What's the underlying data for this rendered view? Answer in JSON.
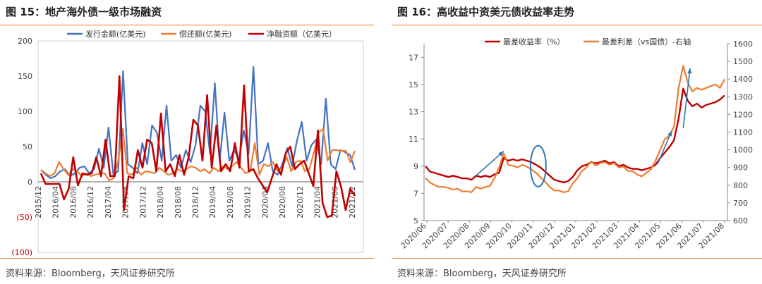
{
  "colors": {
    "accent_orange": "#e07a2e",
    "blue": "#4472c4",
    "orange": "#ed7d31",
    "dark_red": "#c00000",
    "negative_label": "#c00000",
    "annotation_blue": "#2e75b6"
  },
  "left": {
    "title": "图 15：地产海外债一级市场融资",
    "source": "资料来源：Bloomberg，天风证券研究所"
  },
  "right": {
    "title": "图 16：高收益中资美元债收益率走势",
    "source": "资料来源：Bloomberg，天风证券研究所"
  },
  "chart_data": [
    {
      "type": "line",
      "title": "图 15：地产海外债一级市场融资",
      "ylim": [
        -100,
        200
      ],
      "yticks": [
        -100,
        -50,
        0,
        50,
        100,
        150,
        200
      ],
      "ytick_labels": [
        "(100)",
        "(50)",
        "0",
        "50",
        "100",
        "150",
        "200"
      ],
      "x_tick_labels": [
        "2015/12",
        "2016/04",
        "2016/08",
        "2016/12",
        "2017/04",
        "2017/08",
        "2017/12",
        "2018/04",
        "2018/08",
        "2018/12",
        "2019/04",
        "2019/08",
        "2019/12",
        "2020/04",
        "2020/08",
        "2020/12",
        "2021/04",
        "2021/08",
        "2021/12"
      ],
      "legend_position": "top",
      "series": [
        {
          "name": "发行金额(亿美元)",
          "color": "#4472c4",
          "values": [
            17,
            10,
            5,
            8,
            15,
            18,
            8,
            12,
            20,
            22,
            12,
            18,
            47,
            20,
            77,
            10,
            15,
            157,
            25,
            20,
            12,
            55,
            25,
            80,
            70,
            30,
            108,
            30,
            38,
            20,
            45,
            28,
            52,
            108,
            100,
            40,
            140,
            30,
            98,
            30,
            45,
            32,
            73,
            40,
            163,
            25,
            30,
            55,
            15,
            10,
            25,
            48,
            22,
            58,
            85,
            30,
            52,
            60,
            25,
            118,
            25,
            18,
            45,
            42,
            38,
            17
          ]
        },
        {
          "name": "偿还额(亿美元)",
          "color": "#ed7d31",
          "values": [
            17,
            12,
            8,
            12,
            28,
            18,
            10,
            18,
            15,
            8,
            12,
            8,
            10,
            12,
            12,
            2,
            5,
            30,
            75,
            12,
            10,
            20,
            10,
            15,
            14,
            12,
            20,
            15,
            10,
            12,
            18,
            15,
            18,
            22,
            20,
            15,
            18,
            12,
            20,
            15,
            22,
            18,
            22,
            28,
            20,
            12,
            15,
            55,
            10,
            25,
            22,
            28,
            15,
            20,
            35,
            15,
            28,
            30,
            15,
            18,
            42,
            70,
            75,
            30,
            45,
            45,
            44,
            44,
            28,
            44
          ]
        },
        {
          "name": "净融资额（亿美元）",
          "color": "#c00000",
          "values": [
            12,
            -3,
            -3,
            -3,
            -3,
            -25,
            -10,
            35,
            -5,
            12,
            10,
            12,
            35,
            8,
            60,
            8,
            8,
            150,
            -40,
            8,
            5,
            45,
            20,
            60,
            55,
            15,
            97,
            15,
            25,
            8,
            38,
            10,
            35,
            88,
            80,
            30,
            123,
            20,
            80,
            15,
            25,
            15,
            55,
            20,
            137,
            15,
            18,
            5,
            -5,
            -15,
            5,
            25,
            10,
            40,
            50,
            18,
            25,
            30,
            12,
            -6,
            73,
            -30,
            -50,
            -48,
            15,
            -7,
            -40,
            -10,
            -20
          ]
        }
      ]
    },
    {
      "type": "line",
      "title": "图 16：高收益中资美元债收益率走势",
      "y_left": {
        "ticks": [
          5,
          7,
          9,
          11,
          13,
          15,
          17
        ],
        "lim": [
          5,
          18
        ]
      },
      "y_right": {
        "ticks": [
          600,
          700,
          800,
          900,
          1000,
          1100,
          1200,
          1300,
          1400,
          1500,
          1600
        ],
        "lim": [
          600,
          1600
        ]
      },
      "x_tick_labels": [
        "2020/06",
        "2020/07",
        "2020/08",
        "2020/09",
        "2020/10",
        "2020/11",
        "2020/12",
        "2021/01",
        "2021/02",
        "2021/03",
        "2021/04",
        "2021/05",
        "2021/06",
        "2021/07",
        "2021/08"
      ],
      "legend_position": "top",
      "series": [
        {
          "name": "最差收益率（%）",
          "axis": "left",
          "color": "#c00000",
          "values": [
            9.0,
            8.6,
            8.5,
            8.4,
            8.3,
            8.2,
            8.3,
            8.2,
            8.1,
            8.1,
            8.0,
            8.3,
            8.2,
            8.3,
            8.2,
            8.4,
            8.5,
            9.6,
            9.4,
            9.5,
            9.4,
            9.5,
            9.4,
            9.3,
            9.1,
            8.9,
            8.6,
            8.3,
            8.0,
            7.9,
            7.8,
            7.9,
            8.2,
            8.7,
            9.0,
            9.1,
            9.3,
            9.2,
            9.3,
            9.4,
            9.2,
            9.3,
            9.0,
            9.1,
            8.9,
            8.8,
            8.8,
            8.7,
            8.8,
            8.9,
            9.1,
            9.6,
            10.0,
            10.4,
            10.9,
            12.5,
            14.7,
            13.8,
            13.4,
            13.6,
            13.3,
            13.5,
            13.6,
            13.7,
            13.9,
            14.2
          ]
        },
        {
          "name": "最差利差（vs国债）-右轴",
          "axis": "right",
          "color": "#ed7d31",
          "values": [
            840,
            815,
            800,
            790,
            790,
            785,
            775,
            780,
            765,
            765,
            760,
            790,
            780,
            790,
            795,
            840,
            900,
            980,
            915,
            910,
            900,
            915,
            905,
            890,
            870,
            845,
            820,
            790,
            770,
            770,
            760,
            765,
            810,
            840,
            880,
            900,
            935,
            910,
            925,
            930,
            915,
            925,
            900,
            905,
            880,
            880,
            860,
            850,
            870,
            890,
            940,
            1000,
            1060,
            1080,
            1130,
            1350,
            1475,
            1380,
            1330,
            1350,
            1340,
            1350,
            1360,
            1370,
            1350,
            1400
          ]
        }
      ],
      "annotations": [
        "arrow",
        "ellipse",
        "arrow",
        "arrow"
      ]
    }
  ]
}
